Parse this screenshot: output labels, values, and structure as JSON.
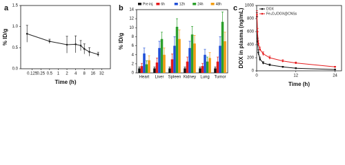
{
  "chart_data": [
    {
      "type": "line",
      "panel_label": "a",
      "xlabel": "Time (h)",
      "ylabel": "% ID/g",
      "xscale": "log",
      "x": [
        0.083,
        0.5,
        2,
        4,
        6,
        8,
        12,
        24
      ],
      "values": [
        0.83,
        0.65,
        0.57,
        0.58,
        0.55,
        0.47,
        0.4,
        0.34
      ],
      "errors": [
        0.2,
        0.05,
        0.2,
        0.2,
        0.12,
        0.12,
        0.1,
        0.05
      ],
      "color": "#222222",
      "xlim": [
        0.05,
        64
      ],
      "xticks": [
        0.125,
        0.25,
        0.5,
        1,
        2,
        4,
        8,
        16,
        32
      ],
      "ylim": [
        0,
        1.5
      ],
      "yticks": [
        {
          "value": 0,
          "label": "0.0"
        },
        {
          "value": 0.5,
          "label": "0.5"
        },
        {
          "value": 1,
          "label": "1.0"
        },
        {
          "value": 1.5,
          "label": "1.5"
        }
      ]
    },
    {
      "type": "bar",
      "panel_label": "b",
      "ylabel": "% ID/g",
      "legend": "top",
      "categories": [
        "Heart",
        "Liver",
        "Spleen",
        "Kidney",
        "Lung",
        "Tumor"
      ],
      "series": [
        {
          "name": "Pre inj.",
          "color": "#111111",
          "values": [
            1,
            1,
            1,
            1,
            1,
            1
          ],
          "errors": [
            0.3,
            0.3,
            0.3,
            0.3,
            0.3,
            0.3
          ]
        },
        {
          "name": "6h",
          "color": "#e41a1c",
          "values": [
            1.5,
            2.3,
            3,
            2.5,
            1.5,
            2.5
          ],
          "errors": [
            0.6,
            1,
            1.2,
            1,
            0.6,
            1
          ]
        },
        {
          "name": "12h",
          "color": "#1f4fd8",
          "values": [
            4.3,
            5.5,
            6,
            5.5,
            4,
            6
          ],
          "errors": [
            1.2,
            1.5,
            2,
            1.5,
            1.2,
            2
          ]
        },
        {
          "name": "24h",
          "color": "#2ca02c",
          "values": [
            1.9,
            7.5,
            10.2,
            8.5,
            2.5,
            11.3
          ],
          "errors": [
            0.8,
            1.5,
            1.8,
            1.8,
            1,
            2.2
          ]
        },
        {
          "name": "48h",
          "color": "#f39c12",
          "values": [
            2.8,
            4,
            7.5,
            6.5,
            3.3,
            7
          ],
          "errors": [
            1,
            1.5,
            2,
            1.8,
            1.2,
            2
          ]
        }
      ],
      "ylim": [
        0,
        14
      ],
      "yticks": [
        0,
        2,
        4,
        6,
        8,
        10,
        12,
        14
      ]
    },
    {
      "type": "line",
      "panel_label": "c",
      "xlabel": "Time (h)",
      "ylabel": "DOX in plasma (ng/mL)",
      "legend": "upper left",
      "x": [
        0.083,
        0.25,
        0.5,
        1,
        2,
        4,
        8,
        12,
        24
      ],
      "series": [
        {
          "name": "DOX",
          "color": "#111111",
          "values": [
            830,
            450,
            280,
            180,
            120,
            90,
            60,
            40,
            20
          ],
          "errors": [
            60,
            50,
            40,
            30,
            20,
            15,
            10,
            8,
            5
          ]
        },
        {
          "name": "Fe₃O₄/DOX@CNSs",
          "color": "#e41a1c",
          "values": [
            860,
            600,
            420,
            330,
            260,
            200,
            150,
            120,
            60
          ],
          "errors": [
            60,
            50,
            40,
            35,
            30,
            25,
            20,
            15,
            10
          ]
        }
      ],
      "xlim": [
        0,
        26
      ],
      "xticks": [
        0,
        12,
        24
      ],
      "ylim": [
        0,
        1000
      ],
      "yticks": [
        0,
        200,
        400,
        600,
        800,
        1000
      ]
    }
  ]
}
